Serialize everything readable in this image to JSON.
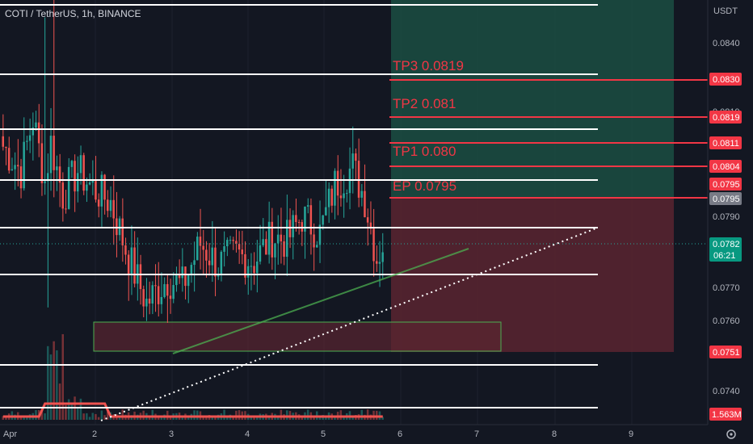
{
  "header": {
    "symbol": "COTI / TetherUS, 1h, BINANCE"
  },
  "price_axis": {
    "currency": "USDT",
    "ticks": [
      "0.0840",
      "0.0830",
      "0.0819",
      "0.0811",
      "0.0804",
      "0.0795",
      "0.0790",
      "0.0782",
      "0.0770",
      "0.0760",
      "0.0751",
      "0.0740"
    ]
  },
  "time_axis": {
    "ticks": [
      "Apr",
      "2",
      "3",
      "4",
      "5",
      "6",
      "7",
      "8",
      "9"
    ]
  },
  "annotations": {
    "tp3": "TP3 0.0819",
    "tp2": "TP2 0.081",
    "tp1": "TP1 0.080",
    "ep": "EP 0.0795"
  },
  "badges": {
    "b0830": "0.0830",
    "b0819": "0.0819",
    "b0811": "0.0811",
    "b0804": "0.0804",
    "b0795a": "0.0795",
    "b0795b": "0.0795",
    "last_price": "0.0782",
    "countdown": "06:21",
    "b0751": "0.0751",
    "volume": "1.563M"
  },
  "colors": {
    "background": "#131722",
    "up": "#26a69a",
    "down": "#ef5350",
    "target_zone": "#1b4d42",
    "stop_zone": "#5a2530",
    "badge_red": "#f23645",
    "badge_green": "#089981",
    "badge_gray": "#787b86"
  },
  "chart_data": {
    "type": "candlestick",
    "seed": 7,
    "segments": [
      [
        0,
        0.081
      ],
      [
        6,
        0.0803
      ],
      [
        10,
        0.0818
      ],
      [
        14,
        0.08
      ],
      [
        16,
        0.0811
      ],
      [
        20,
        0.0796
      ],
      [
        25,
        0.0803
      ],
      [
        30,
        0.0798
      ],
      [
        36,
        0.0794
      ],
      [
        42,
        0.0778
      ],
      [
        48,
        0.0765
      ],
      [
        55,
        0.0772
      ],
      [
        60,
        0.077
      ],
      [
        66,
        0.0782
      ],
      [
        72,
        0.0776
      ],
      [
        78,
        0.0779
      ],
      [
        84,
        0.0777
      ],
      [
        90,
        0.0784
      ],
      [
        95,
        0.0783
      ],
      [
        100,
        0.079
      ],
      [
        106,
        0.0785
      ],
      [
        111,
        0.0799
      ],
      [
        117,
        0.0804
      ],
      [
        121,
        0.0795
      ],
      [
        125,
        0.0778
      ],
      [
        127,
        0.0782
      ]
    ]
  }
}
